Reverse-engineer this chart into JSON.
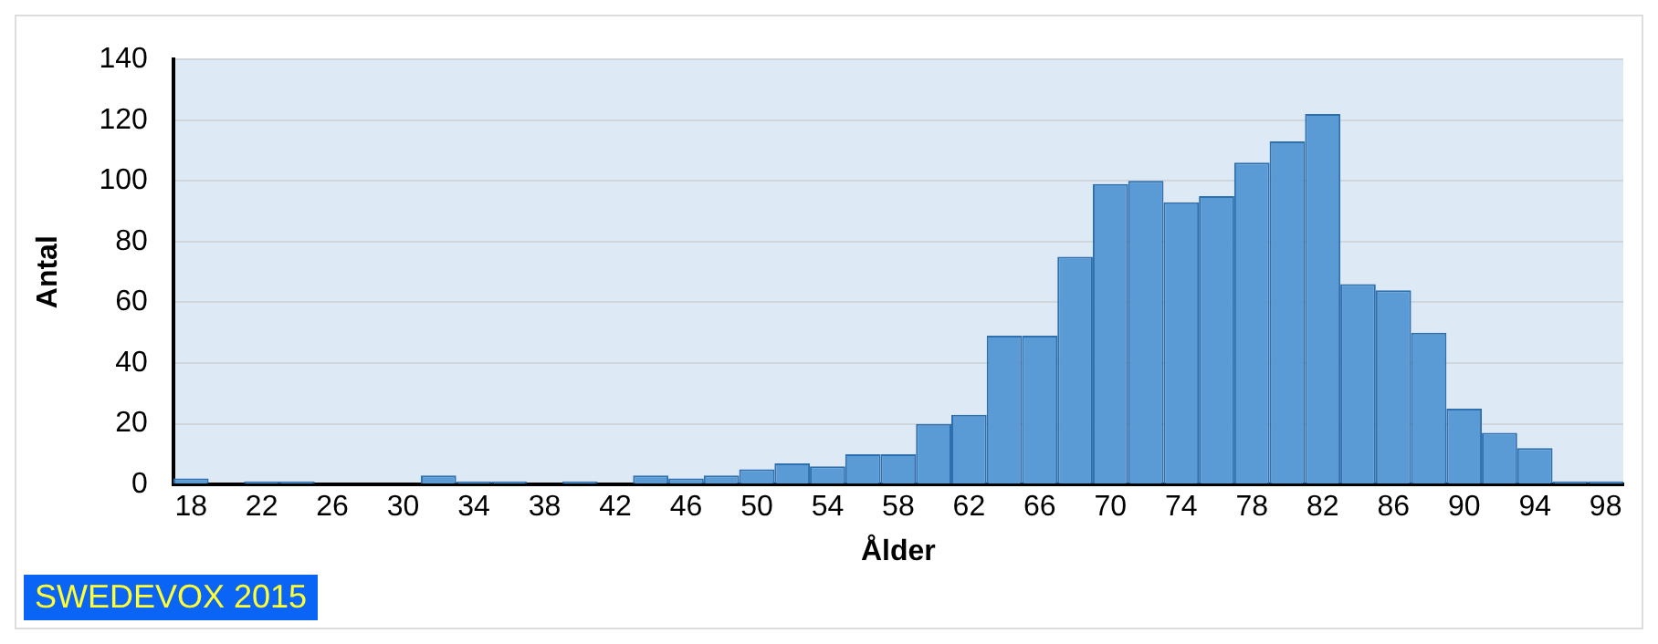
{
  "chart_data": {
    "type": "histogram",
    "xlabel": "Ålder",
    "ylabel": "Antal",
    "bins": [
      17,
      19,
      21,
      23,
      25,
      27,
      29,
      31,
      33,
      35,
      37,
      39,
      41,
      43,
      45,
      47,
      49,
      51,
      53,
      55,
      57,
      59,
      61,
      63,
      65,
      67,
      69,
      71,
      73,
      75,
      77,
      79,
      81,
      83,
      85,
      87,
      89,
      91,
      93,
      95,
      97,
      99
    ],
    "values": [
      2,
      0,
      1,
      1,
      0,
      0,
      0,
      3,
      1,
      1,
      0,
      1,
      0,
      3,
      2,
      3,
      5,
      7,
      6,
      10,
      10,
      20,
      23,
      49,
      49,
      75,
      99,
      100,
      93,
      95,
      106,
      113,
      122,
      66,
      64,
      50,
      25,
      17,
      12,
      1,
      1
    ],
    "color": "#5b9bd5",
    "xlim": [
      17,
      99
    ],
    "xticks": [
      18,
      22,
      26,
      30,
      34,
      38,
      42,
      46,
      50,
      54,
      58,
      62,
      66,
      70,
      74,
      78,
      82,
      86,
      90,
      94,
      98
    ],
    "ylim": [
      0,
      140
    ],
    "yticks": [
      0,
      20,
      40,
      60,
      80,
      100,
      120,
      140
    ],
    "grid": "y",
    "legend": false,
    "annotations": [
      "SWEDEVOX 2015"
    ]
  }
}
